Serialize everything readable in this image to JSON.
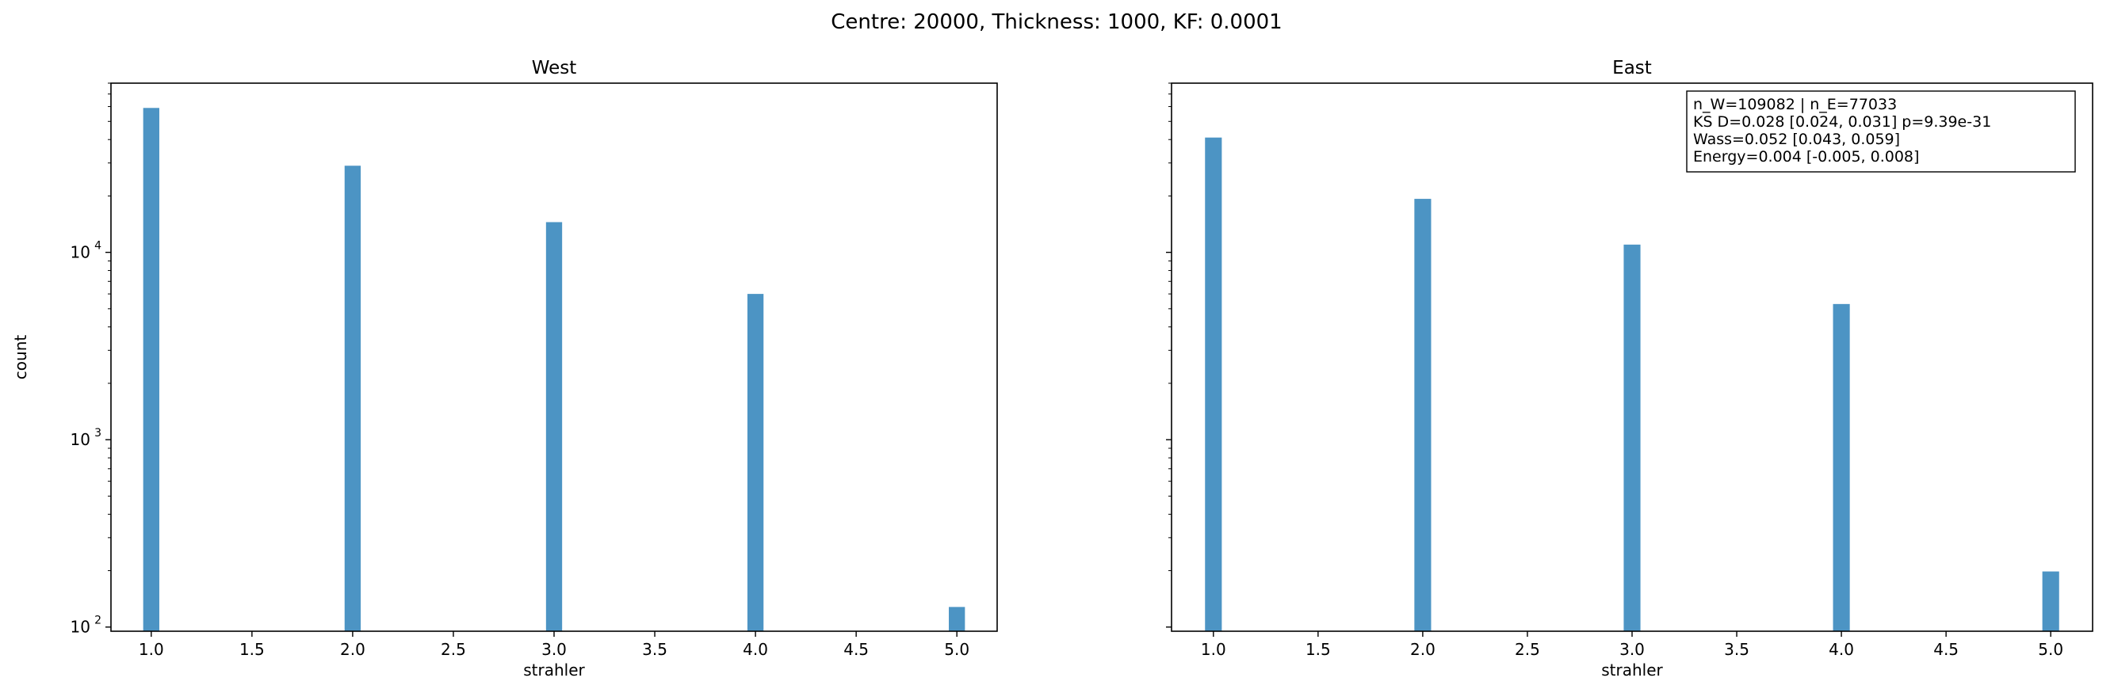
{
  "suptitle": "Centre: 20000, Thickness: 1000, KF: 0.0001",
  "colors": {
    "bar": "#4c94c4",
    "axis": "#000000"
  },
  "chart_data": [
    {
      "type": "bar",
      "title": "West",
      "xlabel": "strahler",
      "ylabel": "count",
      "yscale": "log",
      "xlim": [
        0.8,
        5.2
      ],
      "ylim": [
        95,
        80000
      ],
      "xticks": [
        1.0,
        1.5,
        2.0,
        2.5,
        3.0,
        3.5,
        4.0,
        4.5,
        5.0
      ],
      "xtick_labels": [
        "1.0",
        "1.5",
        "2.0",
        "2.5",
        "3.0",
        "3.5",
        "4.0",
        "4.5",
        "5.0"
      ],
      "yticks_major": [
        100,
        1000,
        10000
      ],
      "ytick_base": "10",
      "ytick_exponents": [
        "2",
        "3",
        "4"
      ],
      "x": [
        1,
        2,
        3,
        4,
        5
      ],
      "values": [
        59000,
        29000,
        14500,
        6000,
        128
      ],
      "annotation": null,
      "grid": false
    },
    {
      "type": "bar",
      "title": "East",
      "xlabel": "strahler",
      "ylabel": "",
      "yscale": "log",
      "xlim": [
        0.8,
        5.2
      ],
      "ylim": [
        95,
        80000
      ],
      "xticks": [
        1.0,
        1.5,
        2.0,
        2.5,
        3.0,
        3.5,
        4.0,
        4.5,
        5.0
      ],
      "xtick_labels": [
        "1.0",
        "1.5",
        "2.0",
        "2.5",
        "3.0",
        "3.5",
        "4.0",
        "4.5",
        "5.0"
      ],
      "yticks_major": [
        100,
        1000,
        10000
      ],
      "ytick_base": "",
      "ytick_exponents": [],
      "x": [
        1,
        2,
        3,
        4,
        5
      ],
      "values": [
        41000,
        19300,
        11000,
        5300,
        198
      ],
      "annotation": {
        "position": "top-right",
        "lines": [
          "n_W=109082 | n_E=77033",
          "KS D=0.028 [0.024, 0.031]  p=9.39e-31",
          "Wass=0.052 [0.043, 0.059]",
          "Energy=0.004 [-0.005, 0.008]"
        ]
      },
      "grid": false
    }
  ]
}
